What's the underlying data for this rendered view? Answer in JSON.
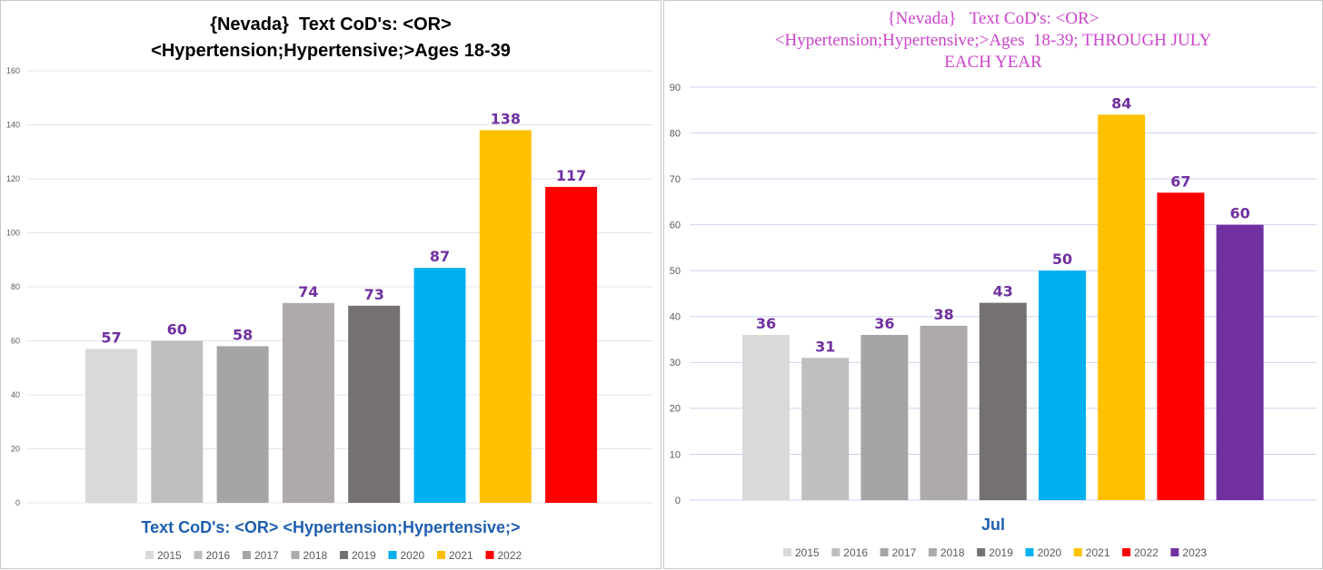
{
  "chart_data": [
    {
      "type": "bar",
      "title_lines": [
        "{Nevada}  Text CoD's: <OR>",
        "<Hypertension;Hypertensive;>Ages 18-39"
      ],
      "xlabel": "Text CoD's: <OR> <Hypertension;Hypertensive;>",
      "ylabel": "",
      "ylim": [
        0,
        160
      ],
      "yticks": [
        0,
        20,
        40,
        60,
        80,
        100,
        120,
        140,
        160
      ],
      "grid": true,
      "legend_position": "bottom",
      "categories": [
        "Text CoD's: <OR> <Hypertension;Hypertensive;>"
      ],
      "series": [
        {
          "name": "2015",
          "values": [
            57
          ],
          "color": "#d9d9d9"
        },
        {
          "name": "2016",
          "values": [
            60
          ],
          "color": "#bfbfbf"
        },
        {
          "name": "2017",
          "values": [
            58
          ],
          "color": "#a5a5a5"
        },
        {
          "name": "2018",
          "values": [
            74
          ],
          "color": "#aeaaaa"
        },
        {
          "name": "2019",
          "values": [
            73
          ],
          "color": "#767171"
        },
        {
          "name": "2020",
          "values": [
            87
          ],
          "color": "#00b0f0"
        },
        {
          "name": "2021",
          "values": [
            138
          ],
          "color": "#ffc000"
        },
        {
          "name": "2022",
          "values": [
            117
          ],
          "color": "#ff0000"
        }
      ],
      "data_label_color": "#7030a0"
    },
    {
      "type": "bar",
      "title_lines": [
        "{Nevada}   Text CoD's: <OR>",
        "<Hypertension;Hypertensive;>Ages  18-39; THROUGH JULY",
        "EACH YEAR"
      ],
      "xlabel": "Jul",
      "ylabel": "",
      "ylim": [
        0,
        90
      ],
      "yticks": [
        0,
        10,
        20,
        30,
        40,
        50,
        60,
        70,
        80,
        90
      ],
      "grid": true,
      "legend_position": "bottom",
      "categories": [
        "Jul"
      ],
      "series": [
        {
          "name": "2015",
          "values": [
            36
          ],
          "color": "#d9d9d9"
        },
        {
          "name": "2016",
          "values": [
            31
          ],
          "color": "#bfbfbf"
        },
        {
          "name": "2017",
          "values": [
            36
          ],
          "color": "#a5a5a5"
        },
        {
          "name": "2018",
          "values": [
            38
          ],
          "color": "#aeaaaa"
        },
        {
          "name": "2019",
          "values": [
            43
          ],
          "color": "#767171"
        },
        {
          "name": "2020",
          "values": [
            50
          ],
          "color": "#00b0f0"
        },
        {
          "name": "2021",
          "values": [
            84
          ],
          "color": "#ffc000"
        },
        {
          "name": "2022",
          "values": [
            67
          ],
          "color": "#ff0000"
        },
        {
          "name": "2023",
          "values": [
            60
          ],
          "color": "#7030a0"
        }
      ],
      "data_label_color": "#7030a0"
    }
  ]
}
